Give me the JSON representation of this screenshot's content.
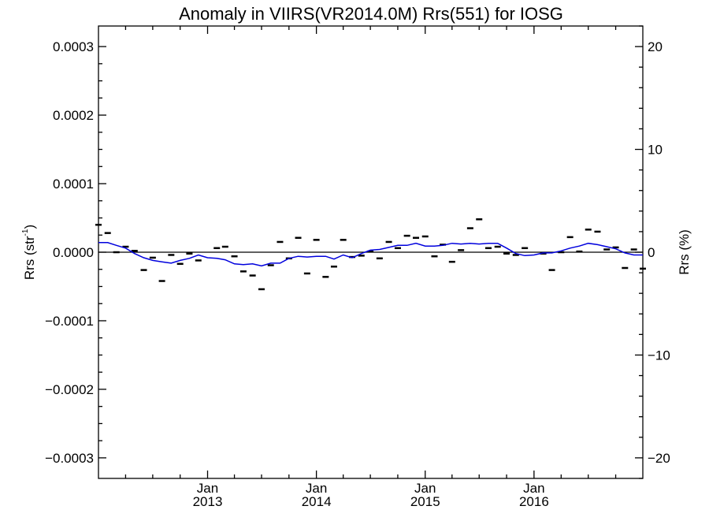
{
  "chart_data": {
    "type": "line",
    "title": "Anomaly in VIIRS(VR2014.0M) Rrs(551) for IOSG",
    "ylabel_left": "Rrs (str",
    "ylabel_left_sup": "-1",
    "ylabel_left_close": ")",
    "ylabel_right": "Rrs (%)",
    "ylim_left": [
      -0.00033,
      0.00033
    ],
    "ylim_right": [
      -22,
      22
    ],
    "xlim": [
      "2012-01-01",
      "2016-12-31"
    ],
    "left_ticks": [
      {
        "value": 0.0003,
        "label": "0.0003"
      },
      {
        "value": 0.0002,
        "label": "0.0002"
      },
      {
        "value": 0.0001,
        "label": "0.0001"
      },
      {
        "value": 0.0,
        "label": "0.0000"
      },
      {
        "value": -0.0001,
        "label": "−0.0001"
      },
      {
        "value": -0.0002,
        "label": "−0.0002"
      },
      {
        "value": -0.0003,
        "label": "−0.0003"
      }
    ],
    "right_ticks": [
      {
        "value": 20,
        "label": "20"
      },
      {
        "value": 10,
        "label": "10"
      },
      {
        "value": 0,
        "label": "0"
      },
      {
        "value": -10,
        "label": "−10"
      },
      {
        "value": -20,
        "label": "−20"
      }
    ],
    "x_major_ticks": [
      {
        "date": "2013-01-01",
        "month": "Jan",
        "year": "2013"
      },
      {
        "date": "2014-01-01",
        "month": "Jan",
        "year": "2014"
      },
      {
        "date": "2015-01-01",
        "month": "Jan",
        "year": "2015"
      },
      {
        "date": "2016-01-01",
        "month": "Jan",
        "year": "2016"
      }
    ],
    "reference_line": {
      "y": 0,
      "color": "#000000"
    },
    "series": [
      {
        "kind": "markers",
        "color": "#000000",
        "points": [
          {
            "x": "2012-01-01",
            "y": 4e-05
          },
          {
            "x": "2012-02-01",
            "y": 2.8e-05
          },
          {
            "x": "2012-03-01",
            "y": 0.0
          },
          {
            "x": "2012-04-01",
            "y": 8e-06
          },
          {
            "x": "2012-05-01",
            "y": 2e-06
          },
          {
            "x": "2012-06-01",
            "y": -2.6e-05
          },
          {
            "x": "2012-07-01",
            "y": -8e-06
          },
          {
            "x": "2012-08-01",
            "y": -4.2e-05
          },
          {
            "x": "2012-09-01",
            "y": -4e-06
          },
          {
            "x": "2012-10-01",
            "y": -1.7e-05
          },
          {
            "x": "2012-11-01",
            "y": -2e-06
          },
          {
            "x": "2012-12-01",
            "y": -1.2e-05
          },
          {
            "x": "2013-02-01",
            "y": 6e-06
          },
          {
            "x": "2013-03-01",
            "y": 8e-06
          },
          {
            "x": "2013-04-01",
            "y": -6e-06
          },
          {
            "x": "2013-05-01",
            "y": -2.8e-05
          },
          {
            "x": "2013-06-01",
            "y": -3.4e-05
          },
          {
            "x": "2013-07-01",
            "y": -5.4e-05
          },
          {
            "x": "2013-08-01",
            "y": -1.9e-05
          },
          {
            "x": "2013-09-01",
            "y": 1.5e-05
          },
          {
            "x": "2013-10-01",
            "y": -9e-06
          },
          {
            "x": "2013-11-01",
            "y": 2.1e-05
          },
          {
            "x": "2013-12-01",
            "y": -3.1e-05
          },
          {
            "x": "2014-01-01",
            "y": 1.8e-05
          },
          {
            "x": "2014-02-01",
            "y": -3.6e-05
          },
          {
            "x": "2014-03-01",
            "y": -2.1e-05
          },
          {
            "x": "2014-04-01",
            "y": 1.8e-05
          },
          {
            "x": "2014-05-01",
            "y": -7e-06
          },
          {
            "x": "2014-06-01",
            "y": -5e-06
          },
          {
            "x": "2014-07-01",
            "y": 1e-06
          },
          {
            "x": "2014-08-01",
            "y": -9e-06
          },
          {
            "x": "2014-09-01",
            "y": 1.5e-05
          },
          {
            "x": "2014-10-01",
            "y": 6e-06
          },
          {
            "x": "2014-11-01",
            "y": 2.4e-05
          },
          {
            "x": "2014-12-01",
            "y": 2.1e-05
          },
          {
            "x": "2015-01-01",
            "y": 2.3e-05
          },
          {
            "x": "2015-02-01",
            "y": -6e-06
          },
          {
            "x": "2015-03-01",
            "y": 1.1e-05
          },
          {
            "x": "2015-04-01",
            "y": -1.4e-05
          },
          {
            "x": "2015-05-01",
            "y": 3e-06
          },
          {
            "x": "2015-06-01",
            "y": 3.5e-05
          },
          {
            "x": "2015-07-01",
            "y": 4.8e-05
          },
          {
            "x": "2015-08-01",
            "y": 6e-06
          },
          {
            "x": "2015-09-01",
            "y": 8e-06
          },
          {
            "x": "2015-10-01",
            "y": -2e-06
          },
          {
            "x": "2015-11-01",
            "y": -4e-06
          },
          {
            "x": "2015-12-01",
            "y": 6e-06
          },
          {
            "x": "2016-02-01",
            "y": -2e-06
          },
          {
            "x": "2016-03-01",
            "y": -2.6e-05
          },
          {
            "x": "2016-04-01",
            "y": 0.0
          },
          {
            "x": "2016-05-01",
            "y": 2.2e-05
          },
          {
            "x": "2016-06-01",
            "y": 1e-06
          },
          {
            "x": "2016-07-01",
            "y": 3.3e-05
          },
          {
            "x": "2016-08-01",
            "y": 3e-05
          },
          {
            "x": "2016-09-01",
            "y": 4e-06
          },
          {
            "x": "2016-10-01",
            "y": 7e-06
          },
          {
            "x": "2016-11-01",
            "y": -2.3e-05
          },
          {
            "x": "2016-12-01",
            "y": 4e-06
          },
          {
            "x": "2016-12-31",
            "y": -2.4e-05
          }
        ]
      },
      {
        "kind": "line",
        "color": "#0000dd",
        "points": [
          {
            "x": "2012-01-01",
            "y": 1.4e-05
          },
          {
            "x": "2012-02-01",
            "y": 1.4e-05
          },
          {
            "x": "2012-03-01",
            "y": 1e-05
          },
          {
            "x": "2012-04-01",
            "y": 6e-06
          },
          {
            "x": "2012-05-01",
            "y": -2e-06
          },
          {
            "x": "2012-06-01",
            "y": -8e-06
          },
          {
            "x": "2012-07-01",
            "y": -1.2e-05
          },
          {
            "x": "2012-08-01",
            "y": -1.4e-05
          },
          {
            "x": "2012-09-01",
            "y": -1.6e-05
          },
          {
            "x": "2012-10-01",
            "y": -1.2e-05
          },
          {
            "x": "2012-11-01",
            "y": -9e-06
          },
          {
            "x": "2012-12-01",
            "y": -4e-06
          },
          {
            "x": "2013-01-01",
            "y": -8e-06
          },
          {
            "x": "2013-02-01",
            "y": -9e-06
          },
          {
            "x": "2013-03-01",
            "y": -1.1e-05
          },
          {
            "x": "2013-04-01",
            "y": -1.7e-05
          },
          {
            "x": "2013-05-01",
            "y": -1.8e-05
          },
          {
            "x": "2013-06-01",
            "y": -1.7e-05
          },
          {
            "x": "2013-07-01",
            "y": -2e-05
          },
          {
            "x": "2013-08-01",
            "y": -1.6e-05
          },
          {
            "x": "2013-09-01",
            "y": -1.6e-05
          },
          {
            "x": "2013-10-01",
            "y": -9e-06
          },
          {
            "x": "2013-11-01",
            "y": -6e-06
          },
          {
            "x": "2013-12-01",
            "y": -7e-06
          },
          {
            "x": "2014-01-01",
            "y": -6e-06
          },
          {
            "x": "2014-02-01",
            "y": -6e-06
          },
          {
            "x": "2014-03-01",
            "y": -1e-05
          },
          {
            "x": "2014-04-01",
            "y": -4e-06
          },
          {
            "x": "2014-05-01",
            "y": -8e-06
          },
          {
            "x": "2014-06-01",
            "y": -2e-06
          },
          {
            "x": "2014-07-01",
            "y": 3e-06
          },
          {
            "x": "2014-08-01",
            "y": 4e-06
          },
          {
            "x": "2014-09-01",
            "y": 7e-06
          },
          {
            "x": "2014-10-01",
            "y": 1e-05
          },
          {
            "x": "2014-11-01",
            "y": 1e-05
          },
          {
            "x": "2014-12-01",
            "y": 1.3e-05
          },
          {
            "x": "2015-01-01",
            "y": 9e-06
          },
          {
            "x": "2015-02-01",
            "y": 9e-06
          },
          {
            "x": "2015-03-01",
            "y": 1e-05
          },
          {
            "x": "2015-04-01",
            "y": 1.3e-05
          },
          {
            "x": "2015-05-01",
            "y": 1.2e-05
          },
          {
            "x": "2015-06-01",
            "y": 1.3e-05
          },
          {
            "x": "2015-07-01",
            "y": 1.2e-05
          },
          {
            "x": "2015-08-01",
            "y": 1.3e-05
          },
          {
            "x": "2015-09-01",
            "y": 1.3e-05
          },
          {
            "x": "2015-10-01",
            "y": 6e-06
          },
          {
            "x": "2015-11-01",
            "y": -2e-06
          },
          {
            "x": "2015-12-01",
            "y": -5e-06
          },
          {
            "x": "2016-01-01",
            "y": -4e-06
          },
          {
            "x": "2016-02-01",
            "y": -1e-06
          },
          {
            "x": "2016-03-01",
            "y": -1e-06
          },
          {
            "x": "2016-04-01",
            "y": 2e-06
          },
          {
            "x": "2016-05-01",
            "y": 6e-06
          },
          {
            "x": "2016-06-01",
            "y": 9e-06
          },
          {
            "x": "2016-07-01",
            "y": 1.3e-05
          },
          {
            "x": "2016-08-01",
            "y": 1.1e-05
          },
          {
            "x": "2016-09-01",
            "y": 8e-06
          },
          {
            "x": "2016-10-01",
            "y": 5e-06
          },
          {
            "x": "2016-11-01",
            "y": -1e-06
          },
          {
            "x": "2016-12-01",
            "y": -4e-06
          },
          {
            "x": "2016-12-31",
            "y": -4e-06
          }
        ]
      }
    ]
  }
}
